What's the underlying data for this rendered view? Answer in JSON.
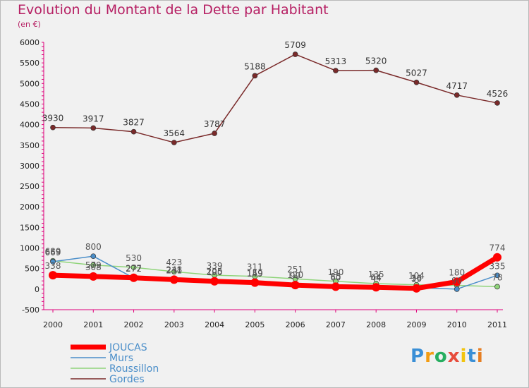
{
  "title": "Evolution du Montant de la Dette par Habitant",
  "unit": "(en €)",
  "logo": {
    "text": "Proxiti",
    "letters": [
      "P",
      "r",
      "o",
      "x",
      "i",
      "t",
      "i"
    ],
    "letter_colors": [
      "#3a8fd6",
      "#f39c12",
      "#27ae60",
      "#e74c3c",
      "#f1c40f",
      "#3a8fd6",
      "#e67e22"
    ]
  },
  "chart_data": {
    "type": "line",
    "categories": [
      "2000",
      "2001",
      "2002",
      "2003",
      "2004",
      "2005",
      "2006",
      "2007",
      "2008",
      "2009",
      "2010",
      "2011"
    ],
    "ylim": [
      -500,
      6000
    ],
    "yticks": [
      -500,
      0,
      500,
      1000,
      1500,
      2000,
      2500,
      3000,
      3500,
      4000,
      4500,
      5000,
      5500,
      6000
    ],
    "grid": false,
    "legend_position": "bottom-left",
    "series": [
      {
        "name": "Gordes",
        "color": "#7a2a2a",
        "width": 1.5,
        "values": [
          3930,
          3917,
          3827,
          3564,
          3787,
          5188,
          5709,
          5313,
          5320,
          5027,
          4717,
          4526
        ],
        "labels": [
          "3930",
          "3917",
          "3827",
          "3564",
          "3787",
          "5188",
          "5709",
          "5313",
          "5320",
          "5027",
          "4717",
          "4526"
        ]
      },
      {
        "name": "Roussillon",
        "color": "#8fd47a",
        "width": 1.5,
        "values": [
          689,
          584,
          530,
          423,
          339,
          311,
          251,
          190,
          135,
          104,
          92,
          59
        ],
        "labels": [
          "689",
          "",
          "530",
          "423",
          "339",
          "311",
          "251",
          "190",
          "135",
          "104",
          "",
          ""
        ]
      },
      {
        "name": "Murs",
        "color": "#4a8ec9",
        "width": 1.5,
        "values": [
          669,
          800,
          272,
          248,
          205,
          149,
          120,
          85,
          64,
          36,
          0,
          335
        ],
        "labels": [
          "669",
          "800",
          "272",
          "248",
          "205",
          "149",
          "120",
          "85",
          "64",
          "36",
          "",
          "335"
        ]
      },
      {
        "name": "JOUCAS",
        "color": "#ff0000",
        "width": 7,
        "values": [
          338,
          308,
          277,
          231,
          190,
          159,
          99,
          60,
          44,
          19,
          180,
          774
        ],
        "labels": [
          "338",
          "308",
          "277",
          "231",
          "190",
          "159",
          "99",
          "60",
          "44",
          "19",
          "180",
          "774"
        ]
      }
    ],
    "extra_labels": [
      "579",
      "90",
      "78"
    ]
  }
}
